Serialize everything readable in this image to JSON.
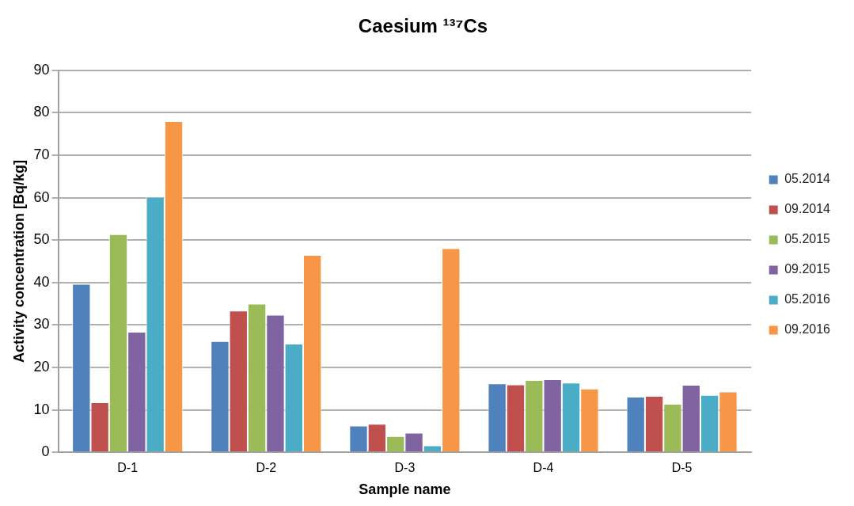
{
  "chart_data": {
    "type": "bar",
    "title": "Caesium ¹³⁷Cs",
    "xlabel": "Sample name",
    "ylabel": "Activity concentration [Bq/kg]",
    "categories": [
      "D-1",
      "D-2",
      "D-3",
      "D-4",
      "D-5"
    ],
    "series": [
      {
        "name": "05.2014",
        "color": "#4f81bd",
        "values": [
          39.7,
          26.2,
          6.3,
          16.2,
          13.1
        ]
      },
      {
        "name": "09.2014",
        "color": "#c0504d",
        "values": [
          11.8,
          33.4,
          6.7,
          16.0,
          13.3
        ]
      },
      {
        "name": "05.2015",
        "color": "#9bbb59",
        "values": [
          51.4,
          35.0,
          3.8,
          17.0,
          11.4
        ]
      },
      {
        "name": "09.2015",
        "color": "#8064a2",
        "values": [
          28.4,
          32.4,
          4.6,
          17.2,
          15.9
        ]
      },
      {
        "name": "05.2016",
        "color": "#4bacc6",
        "values": [
          60.2,
          25.6,
          1.6,
          16.4,
          13.5
        ]
      },
      {
        "name": "09.2016",
        "color": "#f79646",
        "values": [
          78.0,
          46.5,
          48.1,
          15.0,
          14.3
        ]
      }
    ],
    "ylim": [
      0,
      90
    ],
    "yticks": [
      0,
      10,
      20,
      30,
      40,
      50,
      60,
      70,
      80,
      90
    ],
    "grid": "y",
    "legend": "right"
  }
}
